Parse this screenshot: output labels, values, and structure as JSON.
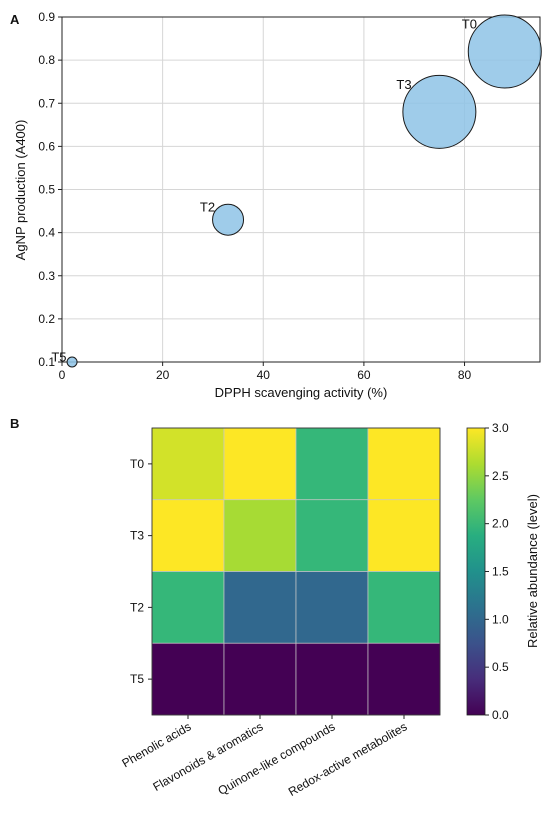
{
  "chart_data": [
    {
      "type": "scatter",
      "panel_label": "A",
      "xlabel": "DPPH scavenging activity (%)",
      "ylabel": "AgNP production (A400)",
      "xlim": [
        0,
        95
      ],
      "ylim": [
        0.1,
        0.9
      ],
      "xticks": [
        0,
        20,
        40,
        60,
        80
      ],
      "yticks": [
        0.1,
        0.2,
        0.3,
        0.4,
        0.5,
        0.6,
        0.7,
        0.8,
        0.9
      ],
      "grid": true,
      "marker_color": "#8ec3e6",
      "points": [
        {
          "label": "T0",
          "x": 88,
          "y": 0.82,
          "relative_size": 3.0
        },
        {
          "label": "T3",
          "x": 75,
          "y": 0.68,
          "relative_size": 3.0
        },
        {
          "label": "T2",
          "x": 33,
          "y": 0.43,
          "relative_size": 1.0
        },
        {
          "label": "T5",
          "x": 2,
          "y": 0.1,
          "relative_size": 0.0
        }
      ]
    },
    {
      "type": "heatmap",
      "panel_label": "B",
      "rows": [
        "T0",
        "T3",
        "T2",
        "T5"
      ],
      "columns": [
        "Phenolic acids",
        "Flavonoids & aromatics",
        "Quinone-like compounds",
        "Redox-active metabolites"
      ],
      "values": [
        [
          2.8,
          3.0,
          2.0,
          3.0
        ],
        [
          3.0,
          2.6,
          2.0,
          3.0
        ],
        [
          2.0,
          1.0,
          1.0,
          2.0
        ],
        [
          0.0,
          0.0,
          0.0,
          0.0
        ]
      ],
      "colorbar": {
        "label": "Relative abundance (level)",
        "range": [
          0,
          3
        ],
        "ticks": [
          "0.0",
          "0.5",
          "1.0",
          "1.5",
          "2.0",
          "2.5",
          "3.0"
        ],
        "colormap": "viridis"
      }
    }
  ]
}
